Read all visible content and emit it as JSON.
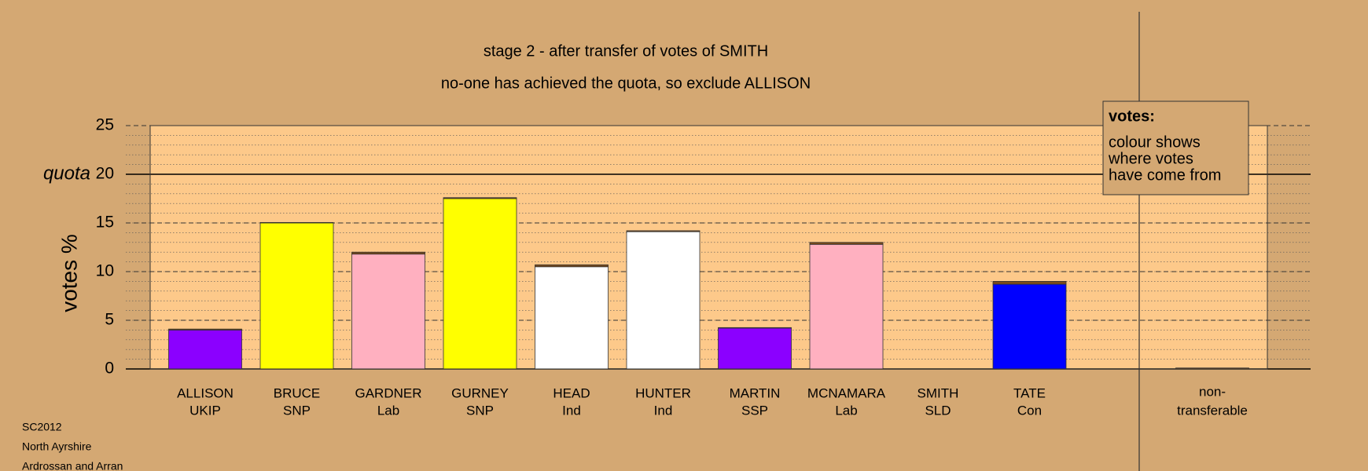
{
  "chart_data": {
    "type": "stacked_bar",
    "title": "stage 2 - after transfer of votes of SMITH",
    "subtitle": "no-one has achieved the quota, so exclude ALLISON",
    "y_label": "votes %",
    "categories": [
      "ALLISON",
      "BRUCE",
      "GARDNER",
      "GURNEY",
      "HEAD",
      "HUNTER",
      "MARTIN",
      "MCNAMARA",
      "SMITH",
      "TATE"
    ],
    "parties": [
      "UKIP",
      "SNP",
      "Lab",
      "SNP",
      "Ind",
      "Ind",
      "SSP",
      "Lab",
      "SLD",
      "Con"
    ],
    "series": [
      {
        "colors": [
          "#8b00ff",
          "#ffff00",
          "#ffb0c0",
          "#ffff00",
          "#ffffff",
          "#ffffff",
          "#8b00ff",
          "#ffb0c0",
          "#ff8c00",
          "#0000ff"
        ],
        "values": [
          4.0,
          15.0,
          11.8,
          17.5,
          10.5,
          14.1,
          4.2,
          12.8,
          0,
          8.7
        ]
      },
      {
        "color": "#7a4a1a",
        "values": [
          0.1,
          0.05,
          0.2,
          0.1,
          0.2,
          0.1,
          0.05,
          0.2,
          0,
          0.3
        ]
      }
    ],
    "nontransferable": {
      "label": [
        "non-",
        "transferable"
      ],
      "value": 0.1,
      "color": "#7a4a1a"
    },
    "quota": {
      "value": 20,
      "label": "quota"
    },
    "ylim": [
      0,
      25
    ],
    "yticks": [
      0,
      5,
      10,
      15,
      20,
      25
    ],
    "minor_step": 1,
    "legend": {
      "title": "votes:",
      "lines": [
        "colour shows",
        "where votes",
        "have come from"
      ]
    },
    "footer": [
      "SC2012",
      "North Ayrshire",
      "Ardrossan and Arran"
    ]
  }
}
